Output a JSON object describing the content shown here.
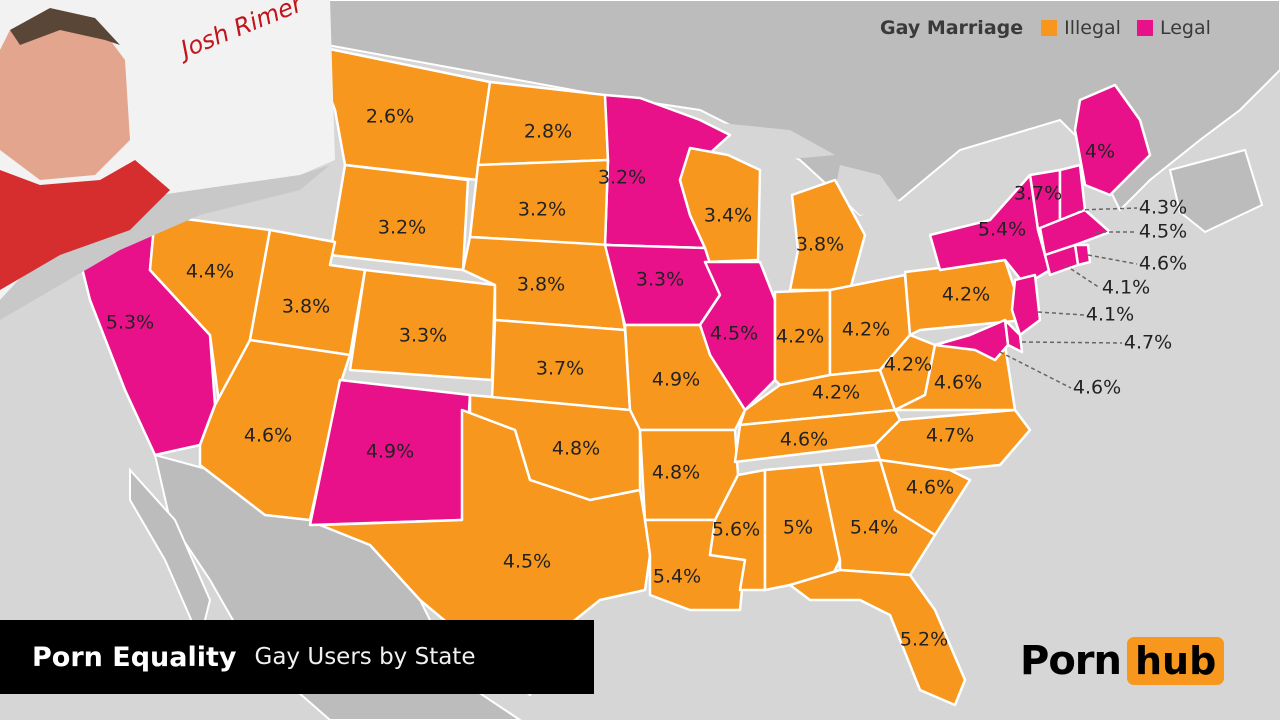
{
  "legend": {
    "title": "Gay Marriage",
    "items": [
      {
        "label": "Illegal",
        "color": "#f7971d"
      },
      {
        "label": "Legal",
        "color": "#e8118a"
      }
    ]
  },
  "caption": {
    "title": "Porn Equality",
    "subtitle": "Gay Users by State"
  },
  "logo": {
    "left": "Porn",
    "right": "hub",
    "accent": "#f7971d"
  },
  "signature": "Josh Rimer",
  "colors": {
    "illegal": "#f7971d",
    "legal": "#e8118a",
    "land": "#bcbcbc",
    "water": "#d6d6d6",
    "border": "#ffffff"
  },
  "states": [
    {
      "name": "Montana",
      "value": "2.6%",
      "status": "illegal"
    },
    {
      "name": "North Dakota",
      "value": "2.8%",
      "status": "illegal"
    },
    {
      "name": "Minnesota",
      "value": "3.2%",
      "status": "legal"
    },
    {
      "name": "Wyoming",
      "value": "3.2%",
      "status": "illegal"
    },
    {
      "name": "South Dakota",
      "value": "3.2%",
      "status": "illegal"
    },
    {
      "name": "Wisconsin",
      "value": "3.4%",
      "status": "illegal"
    },
    {
      "name": "Michigan",
      "value": "3.8%",
      "status": "illegal"
    },
    {
      "name": "California",
      "value": "5.3%",
      "status": "legal"
    },
    {
      "name": "Nevada",
      "value": "4.4%",
      "status": "illegal"
    },
    {
      "name": "Utah",
      "value": "3.8%",
      "status": "illegal"
    },
    {
      "name": "Colorado",
      "value": "3.3%",
      "status": "illegal"
    },
    {
      "name": "Nebraska",
      "value": "3.8%",
      "status": "illegal"
    },
    {
      "name": "Iowa",
      "value": "3.3%",
      "status": "legal"
    },
    {
      "name": "Illinois",
      "value": "4.5%",
      "status": "legal"
    },
    {
      "name": "Indiana",
      "value": "4.2%",
      "status": "illegal"
    },
    {
      "name": "Ohio",
      "value": "4.2%",
      "status": "illegal"
    },
    {
      "name": "Pennsylvania",
      "value": "4.2%",
      "status": "illegal"
    },
    {
      "name": "Kansas",
      "value": "3.7%",
      "status": "illegal"
    },
    {
      "name": "Missouri",
      "value": "4.9%",
      "status": "illegal"
    },
    {
      "name": "Arizona",
      "value": "4.6%",
      "status": "illegal"
    },
    {
      "name": "New Mexico",
      "value": "4.9%",
      "status": "legal"
    },
    {
      "name": "Oklahoma",
      "value": "4.8%",
      "status": "illegal"
    },
    {
      "name": "Arkansas",
      "value": "4.8%",
      "status": "illegal"
    },
    {
      "name": "Kentucky",
      "value": "4.2%",
      "status": "illegal"
    },
    {
      "name": "West Virginia",
      "value": "4.2%",
      "status": "illegal"
    },
    {
      "name": "Virginia",
      "value": "4.6%",
      "status": "illegal"
    },
    {
      "name": "Tennessee",
      "value": "4.6%",
      "status": "illegal"
    },
    {
      "name": "North Carolina",
      "value": "4.7%",
      "status": "illegal"
    },
    {
      "name": "South Carolina",
      "value": "4.6%",
      "status": "illegal"
    },
    {
      "name": "Texas",
      "value": "4.5%",
      "status": "illegal"
    },
    {
      "name": "Louisiana",
      "value": "5.4%",
      "status": "illegal"
    },
    {
      "name": "Mississippi",
      "value": "5.6%",
      "status": "illegal"
    },
    {
      "name": "Alabama",
      "value": "5%",
      "status": "illegal"
    },
    {
      "name": "Georgia",
      "value": "5.4%",
      "status": "illegal"
    },
    {
      "name": "Florida",
      "value": "5.2%",
      "status": "illegal"
    },
    {
      "name": "Maine",
      "value": "4%",
      "status": "legal"
    },
    {
      "name": "Vermont",
      "value": "3.7%",
      "status": "legal"
    },
    {
      "name": "New York",
      "value": "5.4%",
      "status": "legal"
    },
    {
      "name": "New Hampshire",
      "value": "4.3%",
      "status": "legal"
    },
    {
      "name": "Massachusetts",
      "value": "4.5%",
      "status": "legal"
    },
    {
      "name": "Rhode Island",
      "value": "4.6%",
      "status": "legal"
    },
    {
      "name": "Connecticut",
      "value": "4.1%",
      "status": "legal"
    },
    {
      "name": "New Jersey",
      "value": "4.1%",
      "status": "legal"
    },
    {
      "name": "Delaware",
      "value": "4.7%",
      "status": "legal"
    },
    {
      "name": "Maryland",
      "value": "4.6%",
      "status": "legal"
    }
  ]
}
